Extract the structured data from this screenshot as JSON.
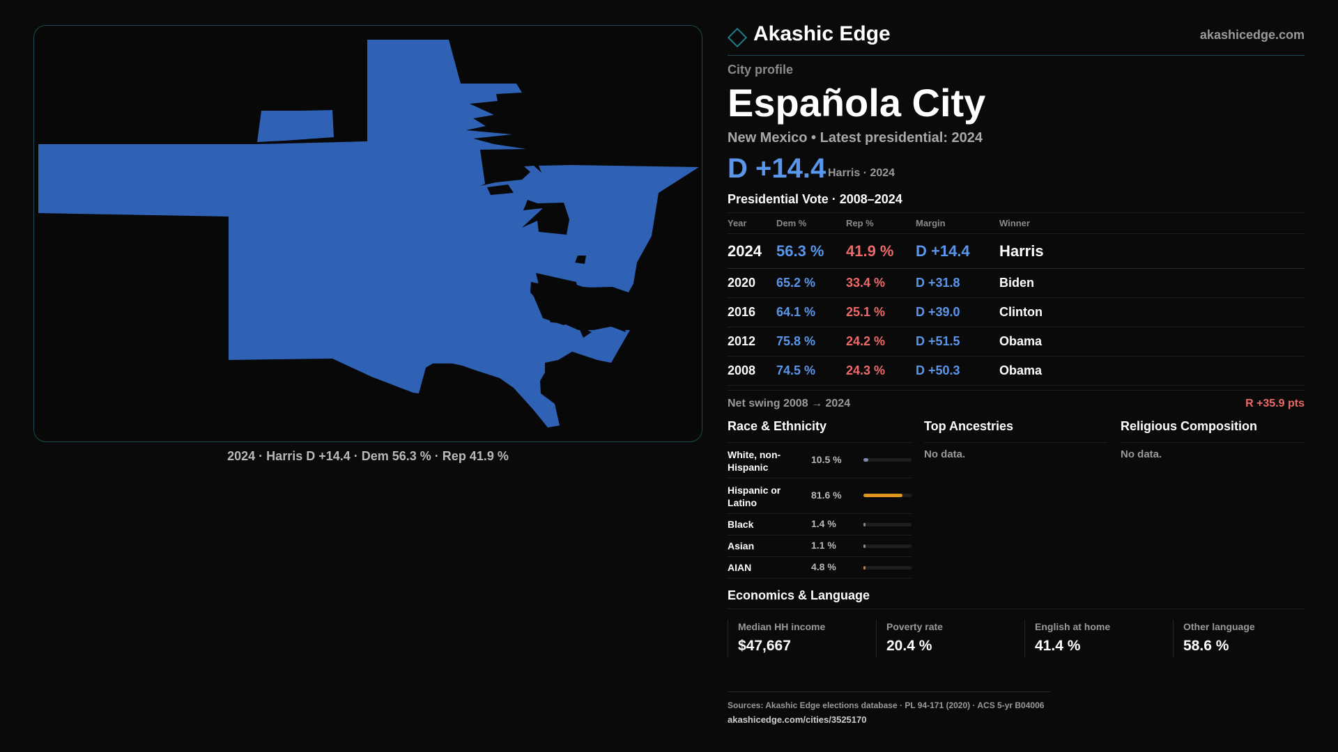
{
  "brand": {
    "name": "Akashic Edge",
    "url": "akashicedge.com"
  },
  "profile": {
    "eyebrow": "City profile",
    "title": "Española City",
    "subline": "New Mexico • Latest presidential: 2024",
    "headline_margin": "D +14.4",
    "headline_sub": "Harris · 2024"
  },
  "map": {
    "caption": "2024 · Harris D +14.4 · Dem 56.3 % · Rep 41.9 %",
    "fill_color": "#2f62b5",
    "border_color": "#1e4a52"
  },
  "votes": {
    "title": "Presidential Vote · 2008–2024",
    "headers": {
      "year": "Year",
      "dem": "Dem %",
      "rep": "Rep %",
      "margin": "Margin",
      "winner": "Winner"
    },
    "rows": [
      {
        "year": "2024",
        "dem": "56.3 %",
        "rep": "41.9 %",
        "margin": "D +14.4",
        "winner": "Harris"
      },
      {
        "year": "2020",
        "dem": "65.2 %",
        "rep": "33.4 %",
        "margin": "D +31.8",
        "winner": "Biden"
      },
      {
        "year": "2016",
        "dem": "64.1 %",
        "rep": "25.1 %",
        "margin": "D +39.0",
        "winner": "Clinton"
      },
      {
        "year": "2012",
        "dem": "75.8 %",
        "rep": "24.2 %",
        "margin": "D +51.5",
        "winner": "Obama"
      },
      {
        "year": "2008",
        "dem": "74.5 %",
        "rep": "24.3 %",
        "margin": "D +50.3",
        "winner": "Obama"
      }
    ],
    "swing_label": "Net swing 2008 → 2024",
    "swing_value": "R +35.9 pts"
  },
  "race": {
    "title": "Race & Ethnicity",
    "rows": [
      {
        "label": "White, non-Hispanic",
        "pct": "10.5 %",
        "value": 10.5,
        "color": "#7d8aa8"
      },
      {
        "label": "Hispanic or Latino",
        "pct": "81.6 %",
        "value": 81.6,
        "color": "#e0961e"
      },
      {
        "label": "Black",
        "pct": "1.4 %",
        "value": 1.4,
        "color": "#8a8a8a"
      },
      {
        "label": "Asian",
        "pct": "1.1 %",
        "value": 1.1,
        "color": "#8a8a8a"
      },
      {
        "label": "AIAN",
        "pct": "4.8 %",
        "value": 4.8,
        "color": "#d0782a"
      }
    ]
  },
  "ancestries": {
    "title": "Top Ancestries",
    "empty": "No data."
  },
  "religion": {
    "title": "Religious Composition",
    "empty": "No data."
  },
  "economics": {
    "title": "Economics & Language",
    "cards": [
      {
        "label": "Median HH income",
        "value": "$47,667"
      },
      {
        "label": "Poverty rate",
        "value": "20.4 %"
      },
      {
        "label": "English at home",
        "value": "41.4 %"
      },
      {
        "label": "Other language",
        "value": "58.6 %"
      }
    ]
  },
  "sources": {
    "line": "Sources: Akashic Edge elections database · PL 94-171 (2020) · ACS 5-yr B04006",
    "url": "akashicedge.com/cities/3525170"
  }
}
